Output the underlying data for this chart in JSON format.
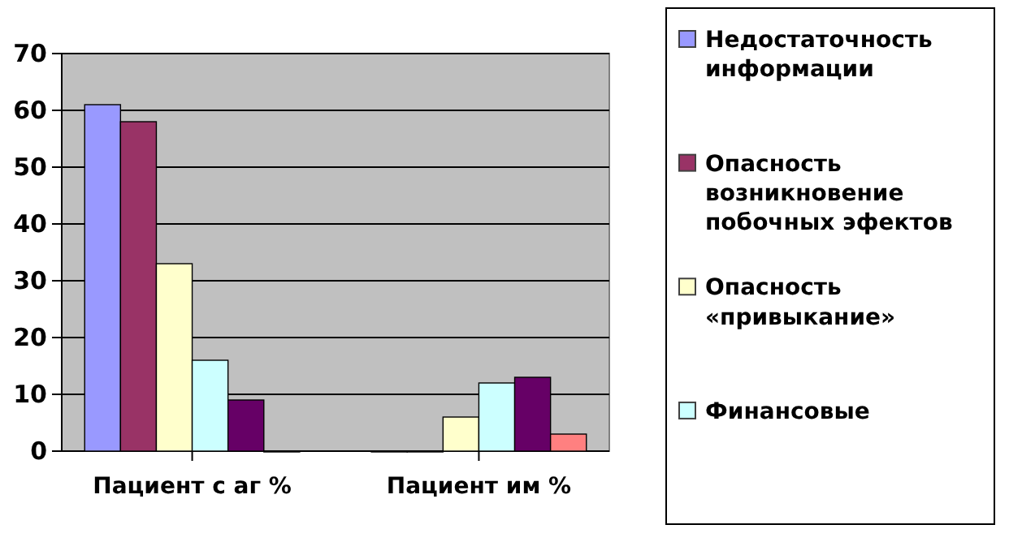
{
  "chart_data": {
    "type": "bar",
    "categories": [
      "Пациент с аг %",
      "Пациент им %"
    ],
    "series": [
      {
        "name": "Недостаточность информации",
        "color": "#9999ff",
        "values": [
          61,
          0
        ]
      },
      {
        "name": "Опасность возникновение побочных эфектов",
        "color": "#993366",
        "values": [
          58,
          0
        ]
      },
      {
        "name": "Опасность «привыкание»",
        "color": "#ffffcc",
        "values": [
          33,
          6
        ]
      },
      {
        "name": "Финансовые",
        "color": "#ccffff",
        "values": [
          16,
          12
        ]
      },
      {
        "color": "#660066",
        "values": [
          9,
          13
        ]
      },
      {
        "color": "#ff8080",
        "values": [
          0,
          3
        ]
      }
    ],
    "ylim": [
      0,
      70
    ],
    "yticks": [
      0,
      10,
      20,
      30,
      40,
      50,
      60,
      70
    ],
    "grid": "y",
    "legend": "right"
  }
}
